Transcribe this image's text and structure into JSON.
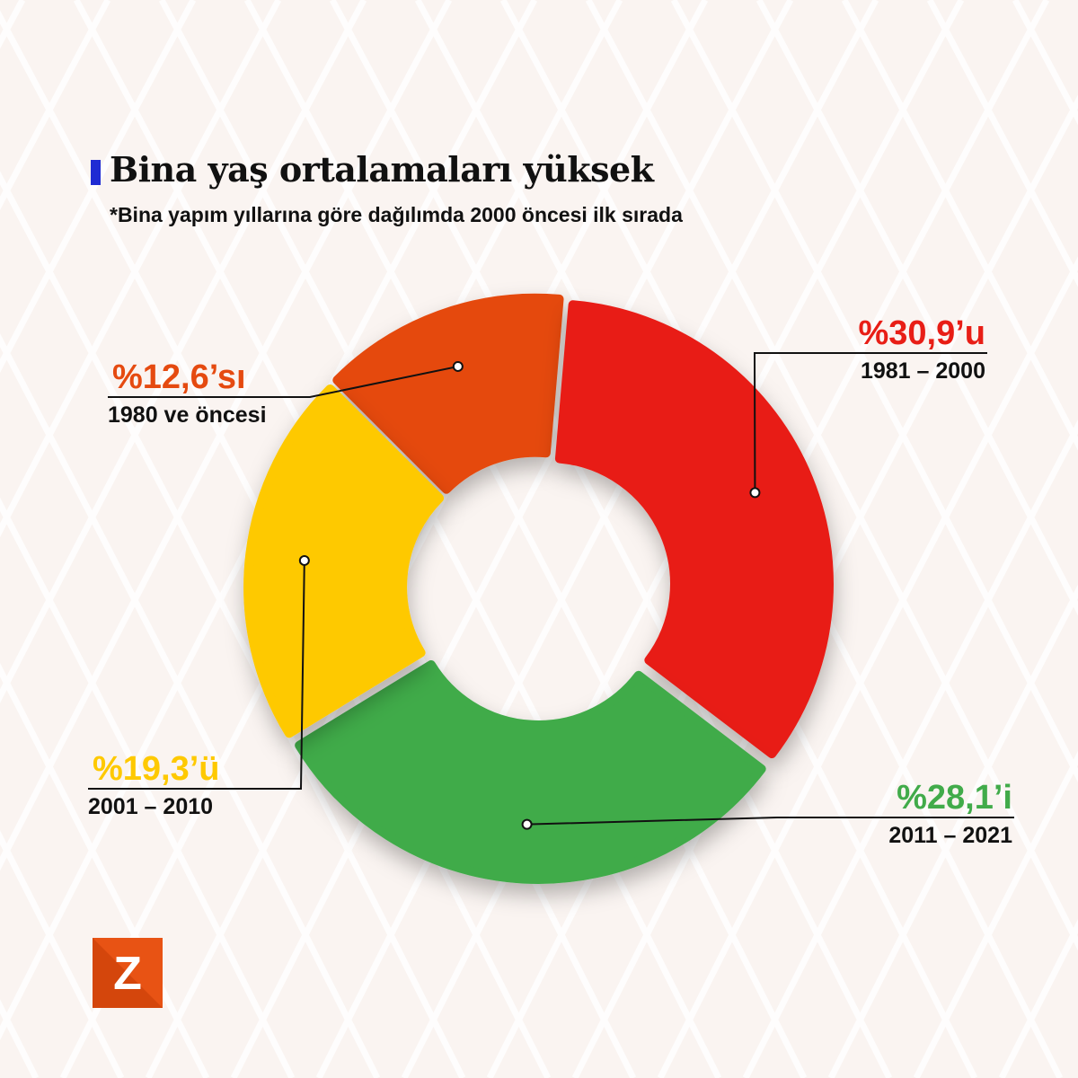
{
  "header": {
    "title": "Bina yaş ortalamaları yüksek",
    "subtitle": "*Bina yapım yıllarına göre dağılımda 2000 öncesi ilk sırada"
  },
  "chart_data": {
    "type": "pie",
    "style": "donut",
    "title": "Bina yaş ortalamaları yüksek",
    "subtitle": "*Bina yapım yıllarına göre dağılımda 2000 öncesi ilk sırada",
    "unit": "%",
    "slices": [
      {
        "label": "1980 ve öncesi",
        "value": 12.6,
        "value_label": "%12,6’sı",
        "color": "#e54a10"
      },
      {
        "label": "1981 – 2000",
        "value": 30.9,
        "value_label": "%30,9’u",
        "color": "#e81e16"
      },
      {
        "label": "2011 – 2021",
        "value": 28.1,
        "value_label": "%28,1’i",
        "color": "#41ab4a"
      },
      {
        "label": "2001 – 2010",
        "value": 19.3,
        "value_label": "%19,3’ü",
        "color": "#fec901"
      }
    ]
  },
  "logo": {
    "letter": "Z",
    "color": "#e85314"
  }
}
